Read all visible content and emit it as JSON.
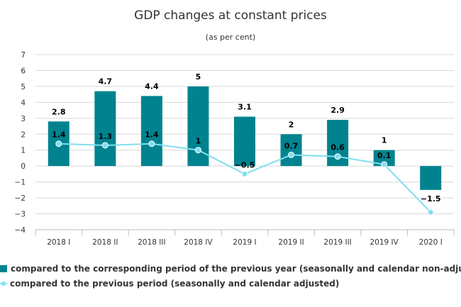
{
  "colors": {
    "bar": "#00838f",
    "line": "#7fdfee",
    "grid": "#d8d8d8",
    "axis": "#bbbbbb"
  },
  "chart_data": {
    "type": "bar",
    "title": "GDP changes at constant prices",
    "subtitle": "(as per cent)",
    "categories": [
      "2018 I",
      "2018 II",
      "2018 III",
      "2018 IV",
      "2019 I",
      "2019 II",
      "2019 III",
      "2019 IV",
      "2020 I"
    ],
    "ylim": [
      -4,
      7
    ],
    "yticks": [
      -4,
      -3,
      -2,
      -1,
      0,
      1,
      2,
      3,
      4,
      5,
      6,
      7
    ],
    "grid": true,
    "legend_position": "bottom",
    "series": [
      {
        "name": "compared to the corresponding period of the previous year (seasonally and calendar non-adjusted)",
        "type": "bar",
        "values": [
          2.8,
          4.7,
          4.4,
          5,
          3.1,
          2,
          2.9,
          1,
          -1.5
        ]
      },
      {
        "name": "compared to the previous period (seasonally and calendar adjusted)",
        "type": "line",
        "values": [
          1.4,
          1.3,
          1.4,
          1,
          -0.5,
          0.7,
          0.6,
          0.1,
          -2.9
        ]
      }
    ],
    "bar_labels": [
      "2.8",
      "4.7",
      "4.4",
      "5",
      "3.1",
      "2",
      "2.9",
      "1",
      "-1.5"
    ],
    "line_labels": [
      "1.4",
      "1.3",
      "1.4",
      "1",
      "-0.5",
      "0.7",
      "0.6",
      "0.1",
      ""
    ]
  }
}
